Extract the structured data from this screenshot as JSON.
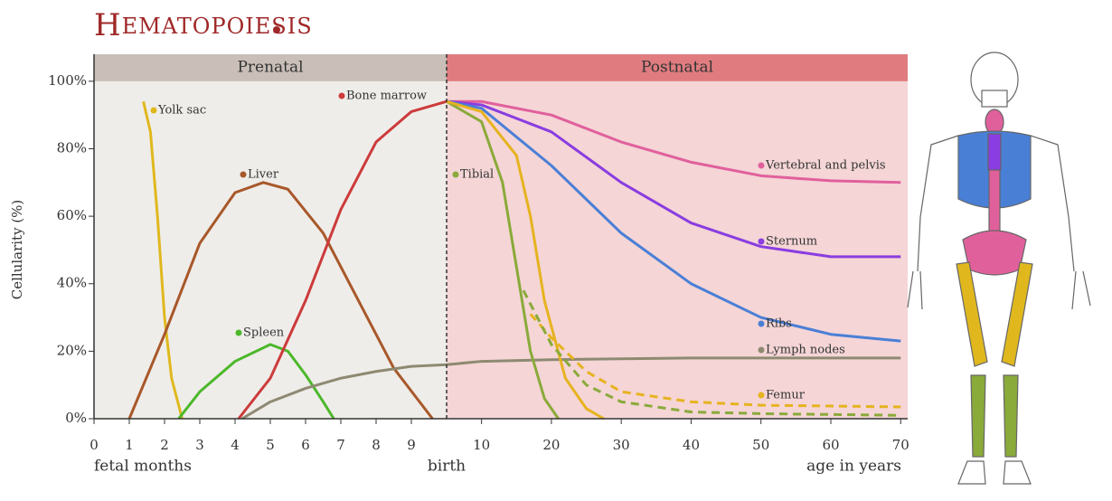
{
  "title": "HEMATOPOIESIS",
  "annotations": [
    "birth"
  ],
  "chart_data": [
    {
      "type": "line",
      "title": "Prenatal",
      "x_label": "fetal months",
      "y_label": "Cellularity (%)",
      "xlim": [
        0,
        10
      ],
      "xticks": [
        0,
        1,
        2,
        3,
        4,
        5,
        6,
        7,
        8,
        9
      ],
      "ylim": [
        0,
        108
      ],
      "yticks": [
        {
          "value": 0,
          "label": "0%"
        },
        {
          "value": 20,
          "label": "20%"
        },
        {
          "value": 40,
          "label": "40%"
        },
        {
          "value": 60,
          "label": "60%"
        },
        {
          "value": 80,
          "label": "80%"
        },
        {
          "value": 100,
          "label": "100%"
        }
      ],
      "series": [
        {
          "name": "Yolk sac",
          "color": "#e0b81e",
          "x": [
            1.4,
            1.6,
            1.8,
            2.0,
            2.2,
            2.5
          ],
          "values": [
            94,
            85,
            60,
            30,
            12,
            0
          ]
        },
        {
          "name": "Liver",
          "color": "#a8582a",
          "x": [
            1,
            2,
            3,
            4,
            4.8,
            5.5,
            6.5,
            7.5,
            8.5,
            9.6
          ],
          "values": [
            0,
            25,
            52,
            67,
            70,
            68,
            55,
            35,
            15,
            0
          ]
        },
        {
          "name": "Spleen",
          "color": "#4cb82a",
          "x": [
            2.4,
            3,
            4,
            5,
            5.5,
            6,
            6.5,
            6.8
          ],
          "values": [
            0,
            8,
            17,
            22,
            20,
            13,
            5,
            0
          ]
        },
        {
          "name": "Bone marrow",
          "color": "#cc3b3b",
          "x": [
            4.1,
            5,
            6,
            7,
            8,
            9,
            10
          ],
          "values": [
            0,
            12,
            35,
            62,
            82,
            91,
            94
          ]
        },
        {
          "color": "#8e8a72",
          "x": [
            4.2,
            5,
            6,
            7,
            8,
            9,
            10
          ],
          "values": [
            0,
            5,
            9,
            12,
            14,
            15.5,
            16
          ]
        }
      ]
    },
    {
      "type": "line",
      "title": "Postnatal",
      "x_label": "age in years",
      "xlim": [
        5,
        71
      ],
      "xticks": [
        10,
        20,
        30,
        40,
        50,
        60,
        70
      ],
      "ylim": [
        0,
        108
      ],
      "series": [
        {
          "name": "Vertebral and pelvis",
          "color": "#e0609c",
          "x": [
            5,
            10,
            20,
            30,
            40,
            50,
            60,
            70
          ],
          "values": [
            94,
            94,
            90,
            82,
            76,
            72,
            70.5,
            70
          ]
        },
        {
          "name": "Sternum",
          "color": "#8a3de0",
          "x": [
            5,
            10,
            20,
            30,
            40,
            50,
            60,
            70
          ],
          "values": [
            94,
            93,
            85,
            70,
            58,
            51,
            48,
            48
          ]
        },
        {
          "name": "Ribs",
          "color": "#4a7fd6",
          "x": [
            5,
            10,
            20,
            30,
            40,
            50,
            60,
            70
          ],
          "values": [
            94,
            92,
            75,
            55,
            40,
            30,
            25,
            23
          ]
        },
        {
          "name": "Lymph nodes",
          "color": "#8e8a72",
          "x": [
            5,
            10,
            20,
            40,
            70
          ],
          "values": [
            16,
            17,
            17.5,
            18,
            18
          ]
        },
        {
          "name": "Tibial",
          "color": "#8aaa3a",
          "x": [
            5,
            10,
            13,
            15,
            17,
            19,
            21
          ],
          "values": [
            94,
            88,
            70,
            45,
            20,
            6,
            0
          ]
        },
        {
          "name": "Femur",
          "color": "#e6b320",
          "x": [
            5,
            10,
            15,
            17,
            19,
            22,
            25,
            27.5
          ],
          "values": [
            94,
            91,
            78,
            60,
            35,
            12,
            3,
            0
          ]
        },
        {
          "color": "#e6b320",
          "dashed": true,
          "x": [
            17,
            20,
            25,
            30,
            40,
            50,
            70
          ],
          "values": [
            31,
            24,
            14,
            8,
            5,
            4,
            3.5
          ]
        },
        {
          "color": "#8aaa3a",
          "dashed": true,
          "x": [
            16,
            20,
            25,
            30,
            40,
            50,
            70
          ],
          "values": [
            38,
            22,
            10,
            5,
            2,
            1.5,
            1
          ]
        }
      ]
    }
  ]
}
